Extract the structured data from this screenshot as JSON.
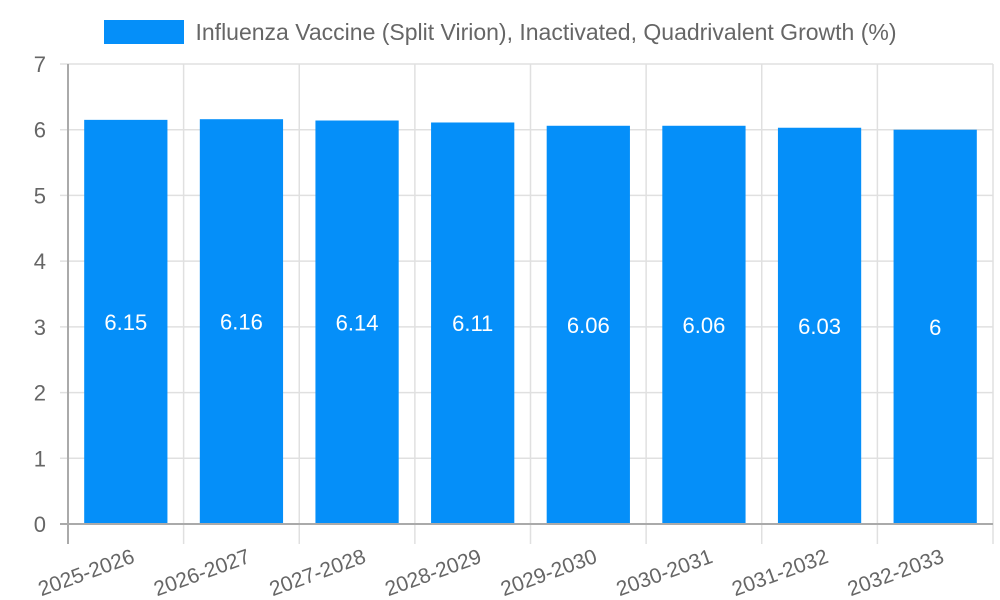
{
  "legend": {
    "label": "Influenza Vaccine (Split Virion), Inactivated, Quadrivalent Growth (%)",
    "color": "#058ff9"
  },
  "chart_data": {
    "type": "bar",
    "title": "",
    "xlabel": "",
    "ylabel": "",
    "categories": [
      "2025-2026",
      "2026-2027",
      "2027-2028",
      "2028-2029",
      "2029-2030",
      "2030-2031",
      "2031-2032",
      "2032-2033"
    ],
    "series": [
      {
        "name": "Influenza Vaccine (Split Virion), Inactivated, Quadrivalent Growth (%)",
        "values": [
          6.15,
          6.16,
          6.14,
          6.11,
          6.06,
          6.06,
          6.03,
          6
        ],
        "color": "#058ff9"
      }
    ],
    "data_labels": [
      "6.15",
      "6.16",
      "6.14",
      "6.11",
      "6.06",
      "6.06",
      "6.03",
      "6"
    ],
    "ylim": [
      0,
      7
    ],
    "yticks": [
      "0",
      "1",
      "2",
      "3",
      "4",
      "5",
      "6",
      "7"
    ],
    "grid": true,
    "legend_position": "top"
  }
}
